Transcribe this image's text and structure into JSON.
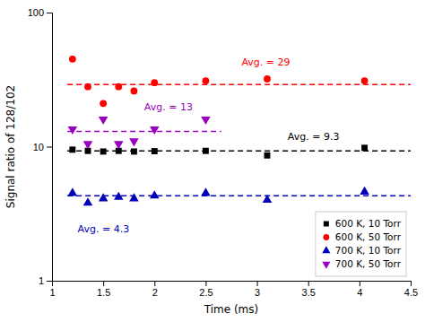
{
  "chart_data": {
    "type": "scatter",
    "xlabel": "Time (ms)",
    "ylabel": "Signal ratio of 128/102",
    "log": "y",
    "xlim": [
      1.0,
      4.5
    ],
    "ylim": [
      1,
      100
    ],
    "xticks": [
      1,
      1.5,
      2,
      2.5,
      3,
      3.5,
      4,
      4.5
    ],
    "yticks": [
      1,
      10,
      100
    ],
    "legend": "lower right",
    "series": [
      {
        "name": "600 K, 10 Torr",
        "color": "#000000",
        "marker": "square",
        "x": [
          1.2,
          1.35,
          1.5,
          1.65,
          1.8,
          2.0,
          2.5,
          3.1,
          4.05
        ],
        "values": [
          9.5,
          9.3,
          9.2,
          9.3,
          9.2,
          9.25,
          9.3,
          8.6,
          9.8
        ],
        "avg": 9.3,
        "avg_x": [
          1.15,
          4.5
        ]
      },
      {
        "name": "600 K, 50 Torr",
        "color": "#ff0000",
        "marker": "circle",
        "x": [
          1.2,
          1.35,
          1.5,
          1.65,
          1.8,
          2.0,
          2.5,
          3.1,
          4.05
        ],
        "values": [
          45,
          28,
          21,
          28,
          26,
          30,
          31,
          32,
          31
        ],
        "avg": 29,
        "avg_x": [
          1.15,
          4.5
        ]
      },
      {
        "name": "700 K, 10 Torr",
        "color": "#0000bb",
        "marker": "triangle-up",
        "x": [
          1.2,
          1.35,
          1.5,
          1.65,
          1.8,
          2.0,
          2.5,
          3.1,
          4.05
        ],
        "values": [
          4.5,
          3.8,
          4.1,
          4.2,
          4.1,
          4.3,
          4.5,
          4.0,
          4.6
        ],
        "avg": 4.3,
        "avg_x": [
          1.15,
          4.5
        ]
      },
      {
        "name": "700 K, 50 Torr",
        "color": "#9900bb",
        "marker": "triangle-down",
        "x": [
          1.2,
          1.35,
          1.5,
          1.65,
          1.8,
          2.0,
          2.5
        ],
        "values": [
          13.5,
          10.5,
          16.0,
          10.5,
          11.0,
          13.5,
          16.0
        ],
        "avg": 13,
        "avg_x": [
          1.15,
          2.65
        ]
      }
    ],
    "annotations": [
      {
        "text": "Avg. = 9.3",
        "x": 3.3,
        "y": 11.8,
        "color": "#000000"
      },
      {
        "text": "Avg. = 29",
        "x": 2.85,
        "y": 42,
        "color": "#ff0000"
      },
      {
        "text": "Avg. = 4.3",
        "x": 1.25,
        "y": 2.4,
        "color": "#0000bb"
      },
      {
        "text": "Avg. = 13",
        "x": 1.9,
        "y": 19.5,
        "color": "#9900bb"
      }
    ]
  }
}
